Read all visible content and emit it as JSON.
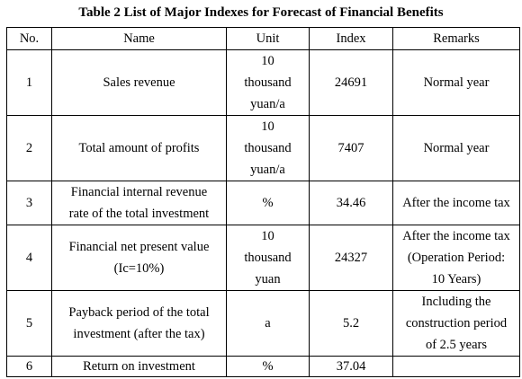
{
  "caption": "Table 2 List of Major Indexes for Forecast of Financial Benefits",
  "headers": {
    "no": "No.",
    "name": "Name",
    "unit": "Unit",
    "index": "Index",
    "remarks": "Remarks"
  },
  "rows": [
    {
      "no": "1",
      "name": "Sales revenue",
      "unit_lines": [
        "10",
        "thousand",
        "yuan/a"
      ],
      "index": "24691",
      "remarks_lines": [
        "Normal year"
      ]
    },
    {
      "no": "2",
      "name": "Total amount of profits",
      "unit_lines": [
        "10",
        "thousand",
        "yuan/a"
      ],
      "index": "7407",
      "remarks_lines": [
        "Normal year"
      ]
    },
    {
      "no": "3",
      "name_lines": [
        "Financial internal revenue",
        "rate of the total investment"
      ],
      "unit": "%",
      "index": "34.46",
      "remarks_lines": [
        "After the income tax"
      ]
    },
    {
      "no": "4",
      "name_lines": [
        "Financial net present value",
        "(Ic=10%)"
      ],
      "unit_lines": [
        "10",
        "thousand",
        "yuan"
      ],
      "index": "24327",
      "remarks_lines": [
        "After the income tax",
        "(Operation Period:",
        "10 Years)"
      ]
    },
    {
      "no": "5",
      "name_lines": [
        "Payback period of the total",
        "investment (after the tax)"
      ],
      "unit": "a",
      "index": "5.2",
      "remarks_lines": [
        "Including the",
        "construction period",
        "of 2.5 years"
      ]
    },
    {
      "no": "6",
      "name": "Return on investment",
      "unit": "%",
      "index": "37.04",
      "remarks": ""
    }
  ]
}
